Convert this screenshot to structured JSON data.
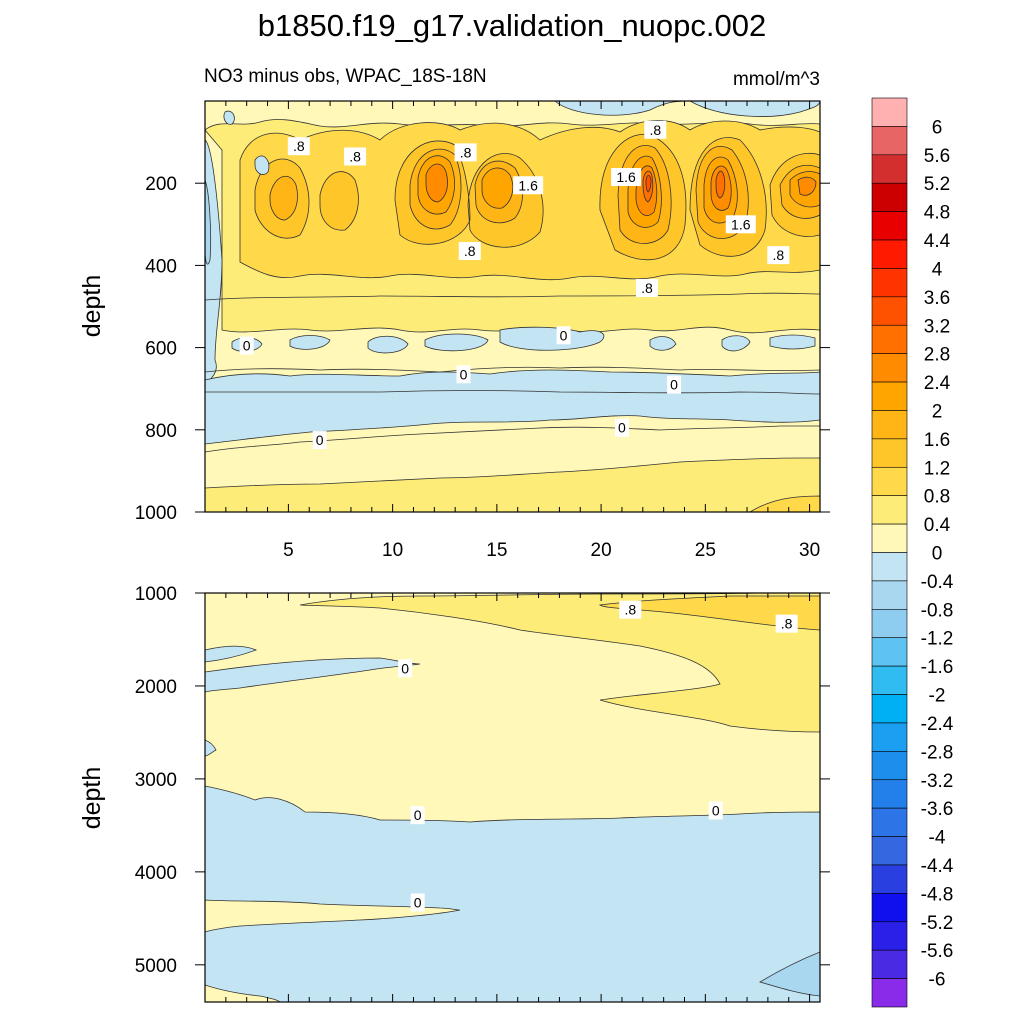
{
  "title": "b1850.f19_g17.validation_nuopc.002",
  "subtitle_left": "NO3 minus obs, WPAC_18S-18N",
  "subtitle_right": "mmol/m^3",
  "colors": {
    "line": "#333333",
    "bg_level_0": "#fff8b8",
    "bg_neg": "#c3e4f3"
  },
  "chart_data": [
    {
      "type": "contour",
      "name": "upper-panel",
      "ylabel": "depth",
      "xlim": [
        1,
        30.5
      ],
      "ylim": [
        0,
        1000
      ],
      "y_inverted": true,
      "x_ticks": [
        5,
        10,
        15,
        20,
        25,
        30
      ],
      "y_ticks": [
        200,
        400,
        600,
        800,
        1000
      ],
      "contour_labels": [
        {
          "text": ".8",
          "x": 5.5,
          "y": 110
        },
        {
          "text": ".8",
          "x": 8.2,
          "y": 135
        },
        {
          "text": ".8",
          "x": 13.5,
          "y": 125
        },
        {
          "text": "1.6",
          "x": 16.5,
          "y": 205
        },
        {
          "text": ".8",
          "x": 22.6,
          "y": 70
        },
        {
          "text": "1.6",
          "x": 21.2,
          "y": 185
        },
        {
          "text": "1.6",
          "x": 26.7,
          "y": 300
        },
        {
          "text": ".8",
          "x": 13.7,
          "y": 365
        },
        {
          "text": ".8",
          "x": 28.5,
          "y": 375
        },
        {
          "text": ".8",
          "x": 22.2,
          "y": 455
        },
        {
          "text": "0",
          "x": 18.2,
          "y": 570
        },
        {
          "text": "0",
          "x": 3.0,
          "y": 595
        },
        {
          "text": "0",
          "x": 13.4,
          "y": 665
        },
        {
          "text": "0",
          "x": 23.5,
          "y": 690
        },
        {
          "text": "0",
          "x": 21.0,
          "y": 795
        },
        {
          "text": "0",
          "x": 6.5,
          "y": 825
        }
      ]
    },
    {
      "type": "contour",
      "name": "lower-panel",
      "ylabel": "depth",
      "xlim": [
        1,
        30.5
      ],
      "ylim": [
        1000,
        5400
      ],
      "y_inverted": true,
      "y_ticks": [
        1000,
        2000,
        3000,
        4000,
        5000
      ],
      "contour_labels": [
        {
          "text": ".8",
          "x": 21.4,
          "y": 1180
        },
        {
          "text": ".8",
          "x": 28.9,
          "y": 1330
        },
        {
          "text": "0",
          "x": 10.6,
          "y": 1810
        },
        {
          "text": "0",
          "x": 11.2,
          "y": 3390
        },
        {
          "text": "0",
          "x": 25.5,
          "y": 3340
        },
        {
          "text": "0",
          "x": 11.2,
          "y": 4330
        }
      ]
    }
  ],
  "colorbar": {
    "labels": [
      "6",
      "5.6",
      "5.2",
      "4.8",
      "4.4",
      "4",
      "3.6",
      "3.2",
      "2.8",
      "2.4",
      "2",
      "1.6",
      "1.2",
      "0.8",
      "0.4",
      "0",
      "-0.4",
      "-0.8",
      "-1.2",
      "-1.6",
      "-2",
      "-2.4",
      "-2.8",
      "-3.2",
      "-3.6",
      "-4",
      "-4.4",
      "-4.8",
      "-5.2",
      "-5.6",
      "-6"
    ],
    "colors": [
      "#ffb0b0",
      "#e86565",
      "#d42f2f",
      "#cc0000",
      "#e80000",
      "#ff1a00",
      "#ff3300",
      "#ff5200",
      "#ff7000",
      "#ff8c00",
      "#ffa500",
      "#ffb515",
      "#ffc62a",
      "#ffd94a",
      "#fdec78",
      "#fff8b8",
      "#c3e4f3",
      "#a8d7ef",
      "#8ecdef",
      "#5fc3f1",
      "#30bcf0",
      "#00b0f5",
      "#1c9ff0",
      "#1e8eec",
      "#2380ea",
      "#2d74e7",
      "#3568e0",
      "#2a3fe0",
      "#1010ee",
      "#2b20e8",
      "#4a2ae2",
      "#8a2bea"
    ]
  }
}
